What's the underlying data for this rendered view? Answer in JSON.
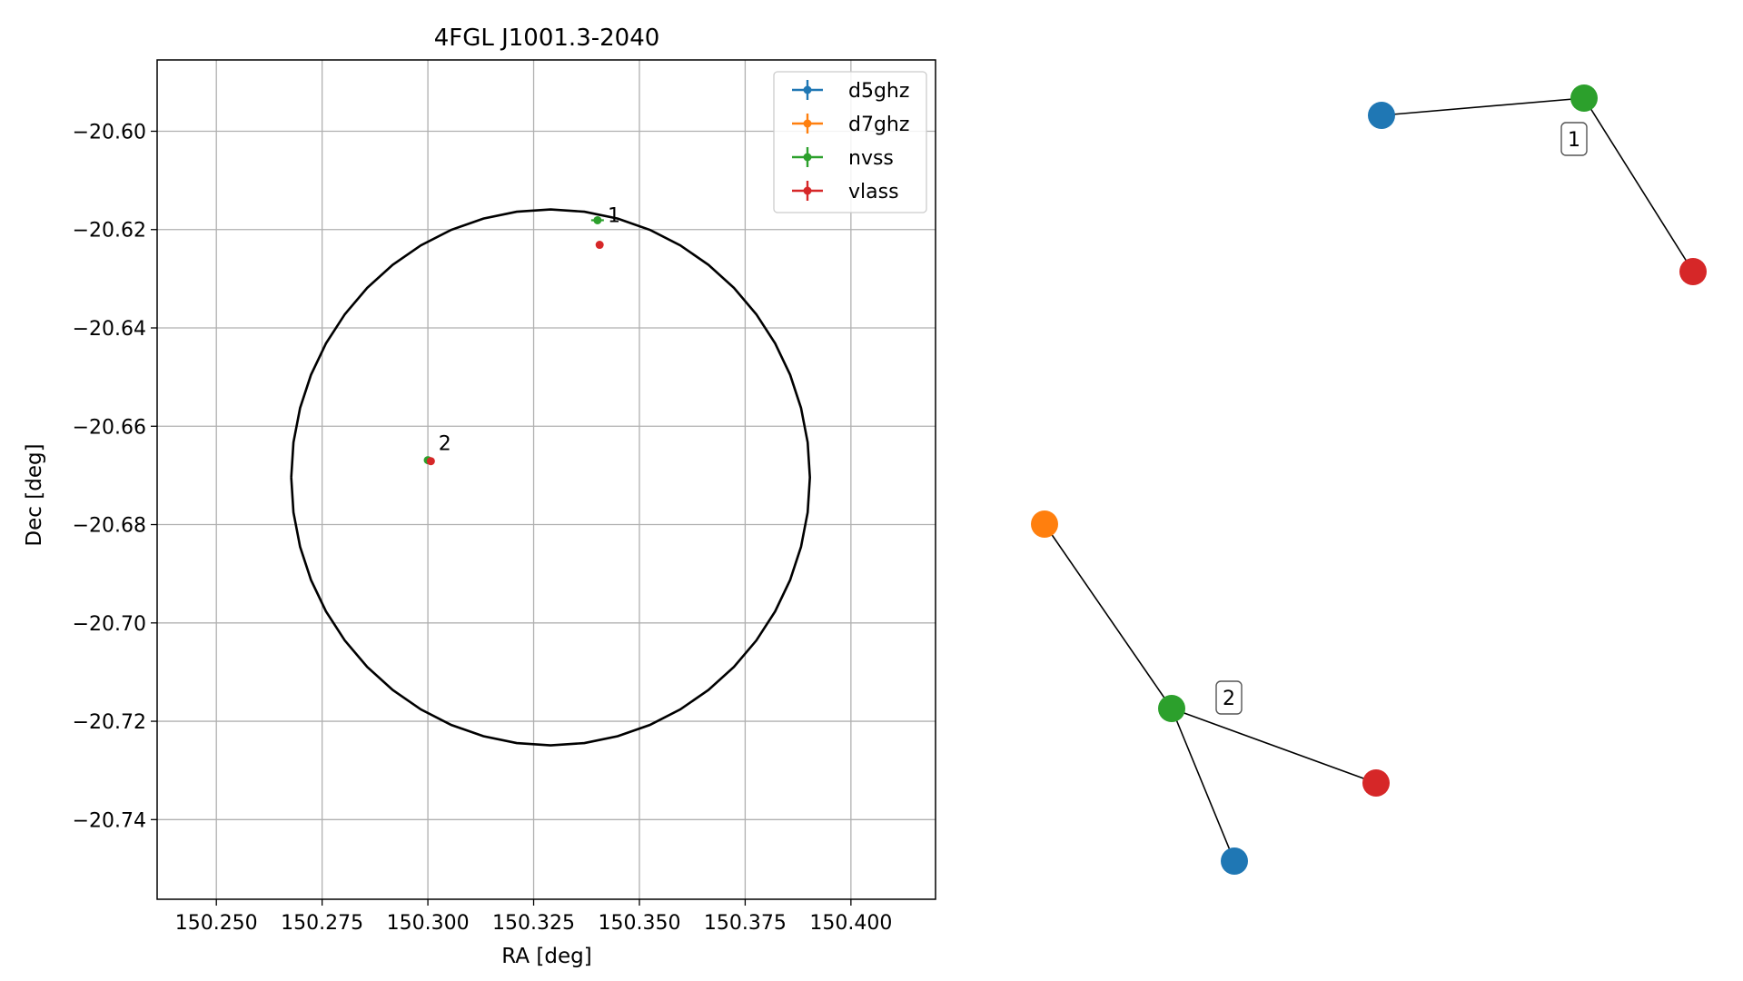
{
  "chart_data": [
    {
      "type": "scatter",
      "title": "4FGL J1001.3-2040",
      "xlabel": "RA [deg]",
      "ylabel": "Dec [deg]",
      "xlim": [
        150.236,
        150.42
      ],
      "ylim": [
        -20.7562,
        -20.5855
      ],
      "grid": true,
      "legend_position": "top-right",
      "xticks": [
        150.25,
        150.275,
        150.3,
        150.325,
        150.35,
        150.375,
        150.4
      ],
      "xtick_labels": [
        "150.250",
        "150.275",
        "150.300",
        "150.325",
        "150.350",
        "150.375",
        "150.400"
      ],
      "yticks": [
        -20.6,
        -20.62,
        -20.64,
        -20.66,
        -20.68,
        -20.7,
        -20.72,
        -20.74
      ],
      "ytick_labels": [
        "−20.60",
        "−20.62",
        "−20.64",
        "−20.66",
        "−20.68",
        "−20.70",
        "−20.72",
        "−20.74"
      ],
      "circle": {
        "center": [
          150.329,
          -20.6704
        ],
        "radius_ra": 0.0613,
        "radius_dec": 0.0545,
        "color": "#000000"
      },
      "series": [
        {
          "name": "d5ghz",
          "color": "#1f77b4",
          "points": []
        },
        {
          "name": "d7ghz",
          "color": "#ff7f0e",
          "points": []
        },
        {
          "name": "nvss",
          "color": "#2ca02c",
          "points": [
            {
              "x": 150.3401,
              "y": -20.6181,
              "xerr": 0.0015,
              "yerr": 0.0007
            },
            {
              "x": 150.3,
              "y": -20.6669,
              "xerr": 0.0004,
              "yerr": 0.0003
            }
          ]
        },
        {
          "name": "vlass",
          "color": "#d62728",
          "points": [
            {
              "x": 150.3406,
              "y": -20.6231,
              "xerr": 0.0002,
              "yerr": 0.0002
            },
            {
              "x": 150.3007,
              "y": -20.6671,
              "xerr": 0.0002,
              "yerr": 0.0002
            }
          ]
        }
      ],
      "annotations": [
        {
          "text": "1",
          "x": 150.3425,
          "y": -20.6185
        },
        {
          "text": "2",
          "x": 150.3025,
          "y": -20.6648
        }
      ]
    },
    {
      "type": "network",
      "components": [
        {
          "label": "1",
          "nodes": [
            {
              "id": "d5ghz",
              "color": "#1f77b4"
            },
            {
              "id": "nvss",
              "color": "#2ca02c"
            },
            {
              "id": "vlass",
              "color": "#d62728"
            }
          ],
          "edges": [
            [
              "d5ghz",
              "nvss"
            ],
            [
              "nvss",
              "vlass"
            ]
          ]
        },
        {
          "label": "2",
          "nodes": [
            {
              "id": "d7ghz",
              "color": "#ff7f0e"
            },
            {
              "id": "nvss",
              "color": "#2ca02c"
            },
            {
              "id": "vlass",
              "color": "#d62728"
            },
            {
              "id": "d5ghz",
              "color": "#1f77b4"
            }
          ],
          "edges": [
            [
              "d7ghz",
              "nvss"
            ],
            [
              "nvss",
              "vlass"
            ],
            [
              "nvss",
              "d5ghz"
            ]
          ]
        }
      ]
    }
  ]
}
